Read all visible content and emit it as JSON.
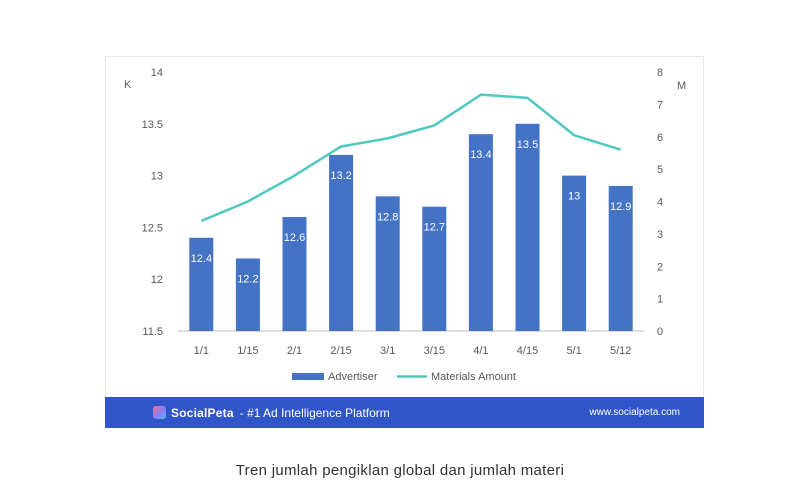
{
  "chart_data": {
    "type": "bar",
    "categories": [
      "1/1",
      "1/15",
      "2/1",
      "2/15",
      "3/1",
      "3/15",
      "4/1",
      "4/15",
      "5/1",
      "5/12"
    ],
    "series": [
      {
        "name": "Advertiser",
        "type": "bar",
        "axis": "left",
        "values": [
          12.4,
          12.2,
          12.6,
          13.2,
          12.8,
          12.7,
          13.4,
          13.5,
          13,
          12.9
        ],
        "labels": [
          "12.4",
          "12.2",
          "12.6",
          "13.2",
          "12.8",
          "12.7",
          "13.4",
          "13.5",
          "13",
          "12.9"
        ],
        "color": "#4472c4"
      },
      {
        "name": "Materials Amount",
        "type": "line",
        "axis": "right",
        "values": [
          3.4,
          4.0,
          4.8,
          5.7,
          5.95,
          6.35,
          7.3,
          7.2,
          6.05,
          5.6
        ],
        "color": "#4fc9c0"
      }
    ],
    "yleft": {
      "unit": "K",
      "ticks": [
        "11.5",
        "12",
        "12.5",
        "13",
        "13.5",
        "14"
      ],
      "range": [
        11.5,
        14
      ]
    },
    "yright": {
      "unit": "M",
      "ticks": [
        "0",
        "1",
        "2",
        "3",
        "4",
        "5",
        "6",
        "7",
        "8"
      ],
      "range": [
        0,
        8
      ]
    },
    "legend_position": "bottom",
    "grid": false
  },
  "footer": {
    "brand": "SocialPeta",
    "tagline": "- #1 Ad Intelligence Platform",
    "url": "www.socialpeta.com"
  },
  "caption": "Tren jumlah pengiklan global dan jumlah materi"
}
